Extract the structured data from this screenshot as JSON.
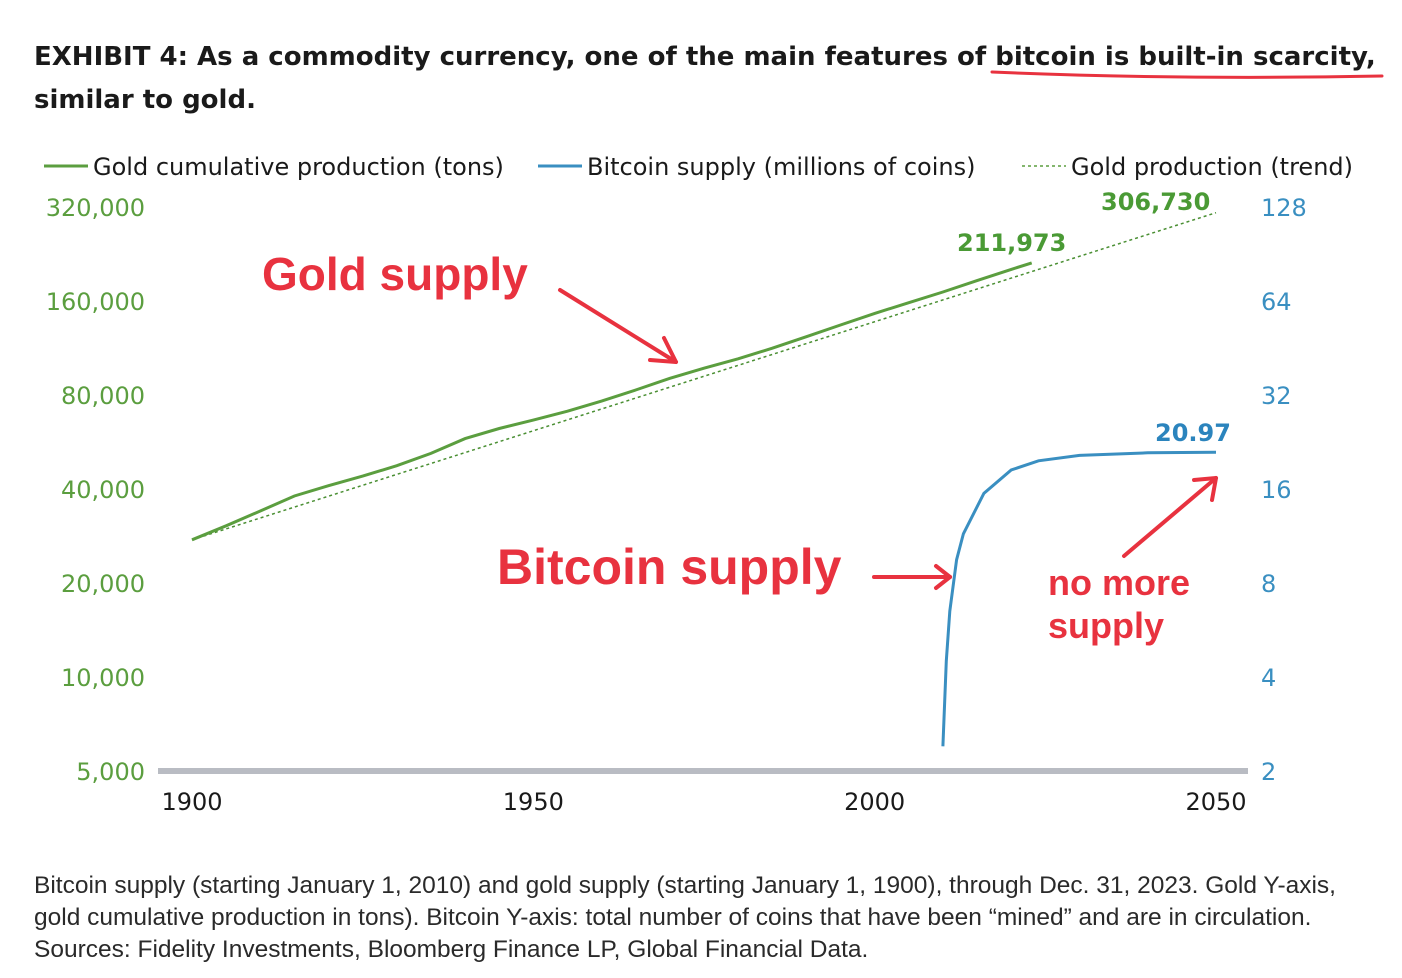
{
  "title": {
    "part1": "EXHIBIT 4: As a commodity currency, one of the main features of ",
    "highlight": "bitcoin is built-in scarcity,",
    "part2": " similar to gold."
  },
  "colors": {
    "gold": "#5b9e3f",
    "bitcoin": "#3a8fc1",
    "annotation": "#e8323f",
    "axis": "#b9bcc3"
  },
  "chart_data": {
    "type": "line",
    "x_ticks": [
      "1900",
      "1950",
      "2000",
      "2050"
    ],
    "xlim": [
      1897,
      2056
    ],
    "left_axis": {
      "scale": "log",
      "ticks": [
        "5,000",
        "10,000",
        "20,000",
        "40,000",
        "80,000",
        "160,000",
        "320,000"
      ],
      "ylim": [
        5000,
        320000
      ]
    },
    "right_axis": {
      "scale": "log",
      "ticks": [
        "2",
        "4",
        "8",
        "16",
        "32",
        "64",
        "128"
      ],
      "ylim": [
        2,
        128
      ]
    },
    "legend": {
      "gold": "Gold cumulative production (tons)",
      "bitcoin": "Bitcoin supply (millions of coins)",
      "trend": "Gold production (trend)"
    },
    "series": [
      {
        "name": "Gold cumulative production (tons)",
        "axis": "left",
        "points": [
          [
            1900,
            27500
          ],
          [
            1905,
            30500
          ],
          [
            1910,
            34000
          ],
          [
            1915,
            38000
          ],
          [
            1920,
            41000
          ],
          [
            1925,
            44000
          ],
          [
            1930,
            47500
          ],
          [
            1935,
            52000
          ],
          [
            1940,
            58000
          ],
          [
            1945,
            62500
          ],
          [
            1950,
            66500
          ],
          [
            1955,
            71000
          ],
          [
            1960,
            76500
          ],
          [
            1965,
            83000
          ],
          [
            1970,
            90500
          ],
          [
            1975,
            97500
          ],
          [
            1980,
            104500
          ],
          [
            1985,
            113000
          ],
          [
            1990,
            123000
          ],
          [
            1995,
            134000
          ],
          [
            2000,
            146000
          ],
          [
            2005,
            158000
          ],
          [
            2010,
            171000
          ],
          [
            2015,
            186000
          ],
          [
            2020,
            202000
          ],
          [
            2023,
            211973
          ]
        ]
      },
      {
        "name": "Bitcoin supply (millions of coins)",
        "axis": "right",
        "points": [
          [
            2010,
            2.4
          ],
          [
            2010.5,
            4.5
          ],
          [
            2011,
            6.5
          ],
          [
            2012,
            9.5
          ],
          [
            2013,
            11.5
          ],
          [
            2016,
            15.5
          ],
          [
            2020,
            18.4
          ],
          [
            2024,
            19.7
          ],
          [
            2030,
            20.5
          ],
          [
            2040,
            20.9
          ],
          [
            2050,
            20.97
          ]
        ]
      },
      {
        "name": "Gold production (trend)",
        "axis": "left",
        "style": "dotted",
        "points": [
          [
            1900,
            27500
          ],
          [
            2050,
            306730
          ]
        ]
      }
    ],
    "data_labels": {
      "gold_end": "211,973",
      "trend_end": "306,730",
      "bitcoin_end": "20.97"
    },
    "annotations": {
      "gold": "Gold supply",
      "bitcoin": "Bitcoin supply",
      "no_more_1": "no more",
      "no_more_2": "supply"
    }
  },
  "footnote": "Bitcoin supply (starting January 1, 2010) and gold supply (starting January 1, 1900), through Dec. 31, 2023. Gold Y-axis, gold cumulative production in tons). Bitcoin Y-axis: total number of coins that have been “mined” and are in circulation. Sources: Fidelity Investments, Bloomberg Finance LP, Global Financial Data."
}
